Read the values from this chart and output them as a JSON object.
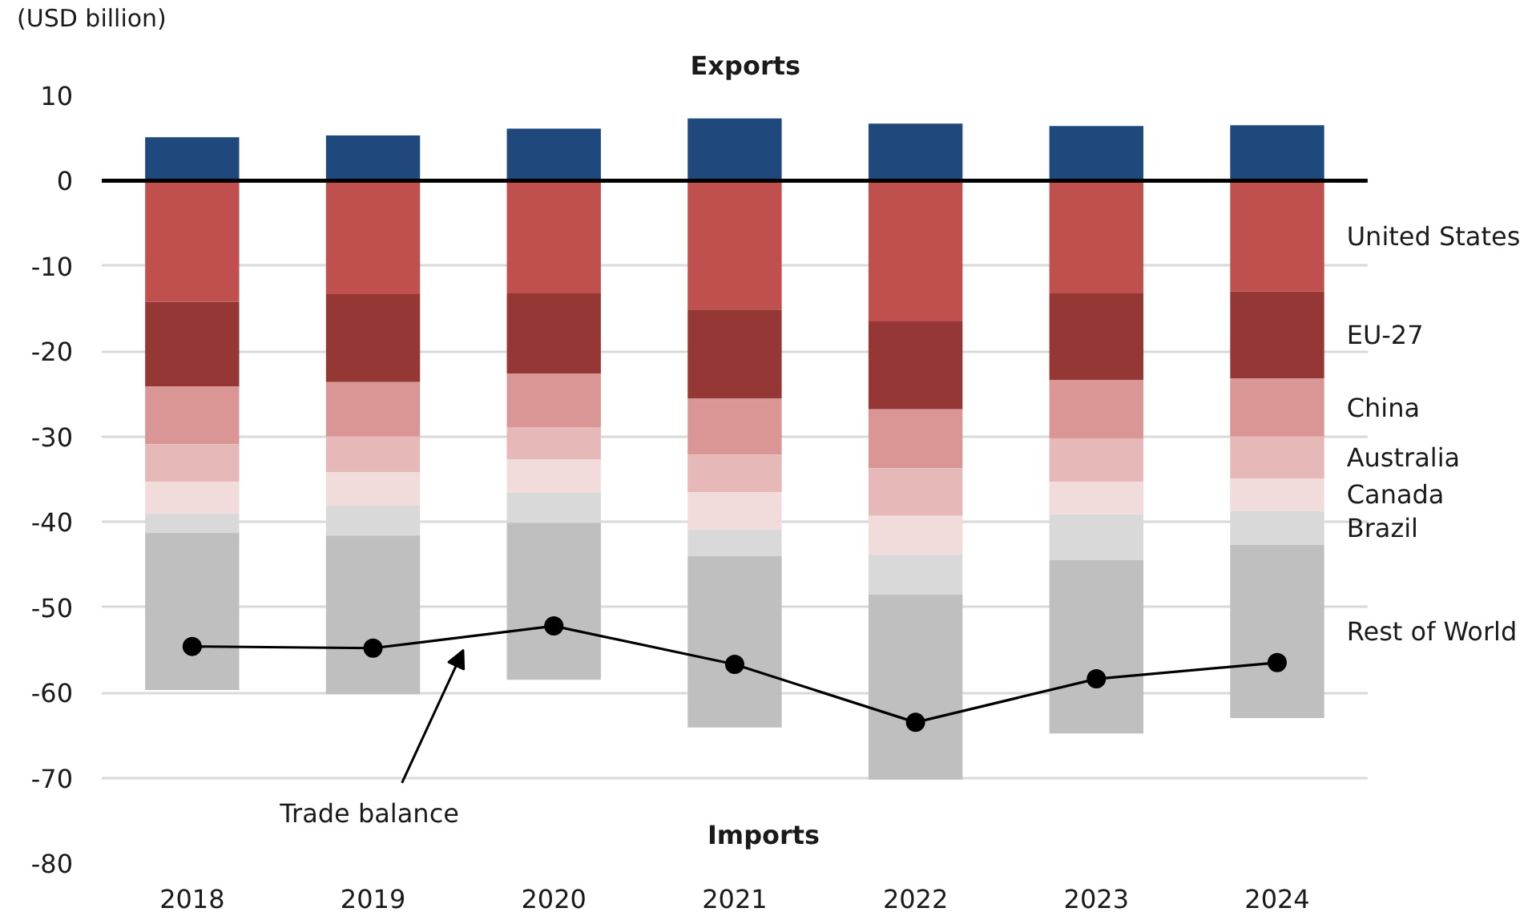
{
  "chart_data": {
    "type": "bar",
    "stacked": true,
    "title": "Exports",
    "ylabel": "(USD billion)",
    "annotations": [
      "Imports"
    ],
    "categories": [
      "2018",
      "2019",
      "2020",
      "2021",
      "2022",
      "2023",
      "2024"
    ],
    "ylim": [
      -80,
      10
    ],
    "yticks": [
      -80,
      -70,
      -60,
      -50,
      -40,
      -30,
      -20,
      -10,
      0,
      10
    ],
    "grid": "y",
    "marker": "circle",
    "ref_lines": [
      {
        "axis": "y",
        "value": 0,
        "color": "#000000"
      }
    ],
    "series": [
      {
        "color": "#1f497d",
        "values": [
          5.1,
          5.3,
          6.1,
          7.3,
          6.7,
          6.4,
          6.5
        ]
      },
      {
        "name": "United States",
        "color": "#c0504d",
        "values": [
          -14.2,
          -13.3,
          -13.2,
          -15.1,
          -16.5,
          -13.2,
          -13.0
        ]
      },
      {
        "name": "EU-27",
        "color": "#953735",
        "values": [
          -9.9,
          -10.3,
          -9.4,
          -10.4,
          -10.3,
          -10.2,
          -10.2
        ]
      },
      {
        "name": "China",
        "color": "#da9694",
        "values": [
          -6.8,
          -6.4,
          -6.3,
          -6.6,
          -6.9,
          -6.8,
          -6.8
        ]
      },
      {
        "name": "Australia",
        "color": "#e6b9b8",
        "values": [
          -4.4,
          -4.2,
          -3.8,
          -4.4,
          -5.6,
          -5.1,
          -4.9
        ]
      },
      {
        "name": "Canada",
        "color": "#f2dcdb",
        "values": [
          -3.7,
          -3.9,
          -3.9,
          -4.4,
          -4.5,
          -3.8,
          -3.8
        ]
      },
      {
        "name": "Brazil",
        "color": "#d9d9d9",
        "values": [
          -2.3,
          -3.5,
          -3.5,
          -3.1,
          -4.7,
          -5.4,
          -4.0
        ]
      },
      {
        "name": "Rest of World",
        "color": "#bfbfbf",
        "values": [
          -18.4,
          -18.6,
          -18.4,
          -20.1,
          -21.7,
          -20.3,
          -20.3
        ]
      },
      {
        "name": "Trade balance",
        "type": "line",
        "color": "#000000",
        "values": [
          -54.6,
          -54.8,
          -52.2,
          -56.7,
          -63.5,
          -58.4,
          -56.5
        ]
      }
    ]
  }
}
